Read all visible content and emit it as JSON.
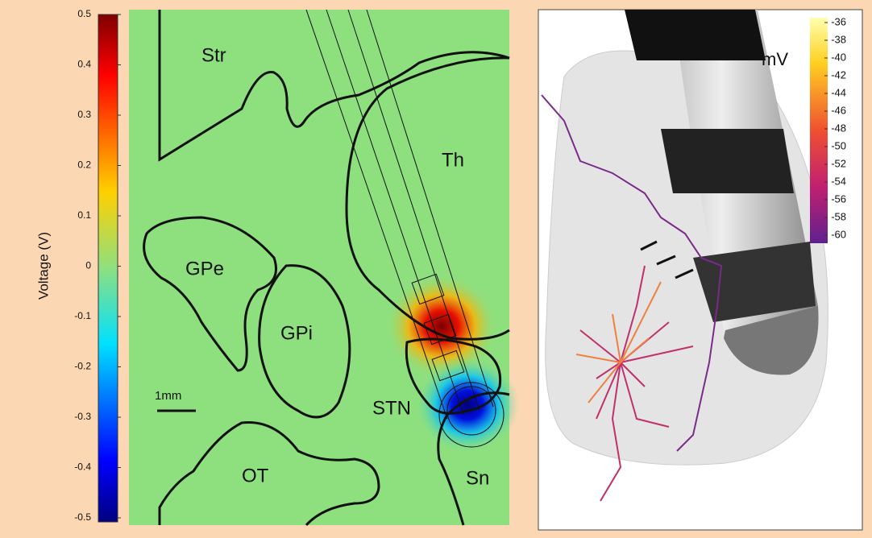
{
  "left_panel": {
    "colorbar": {
      "label": "Voltage (V)",
      "ticks": [
        0.5,
        0.4,
        0.3,
        0.2,
        0.1,
        0,
        -0.1,
        -0.2,
        -0.3,
        -0.4,
        -0.5
      ]
    },
    "regions": [
      "Str",
      "Th",
      "GPe",
      "GPi",
      "STN",
      "OT",
      "Sn"
    ],
    "scale_bar": "1mm"
  },
  "right_panel": {
    "colorbar": {
      "unit": "mV",
      "ticks": [
        -36,
        -38,
        -40,
        -42,
        -44,
        -46,
        -48,
        -50,
        -52,
        -54,
        -56,
        -58,
        -60
      ]
    }
  }
}
